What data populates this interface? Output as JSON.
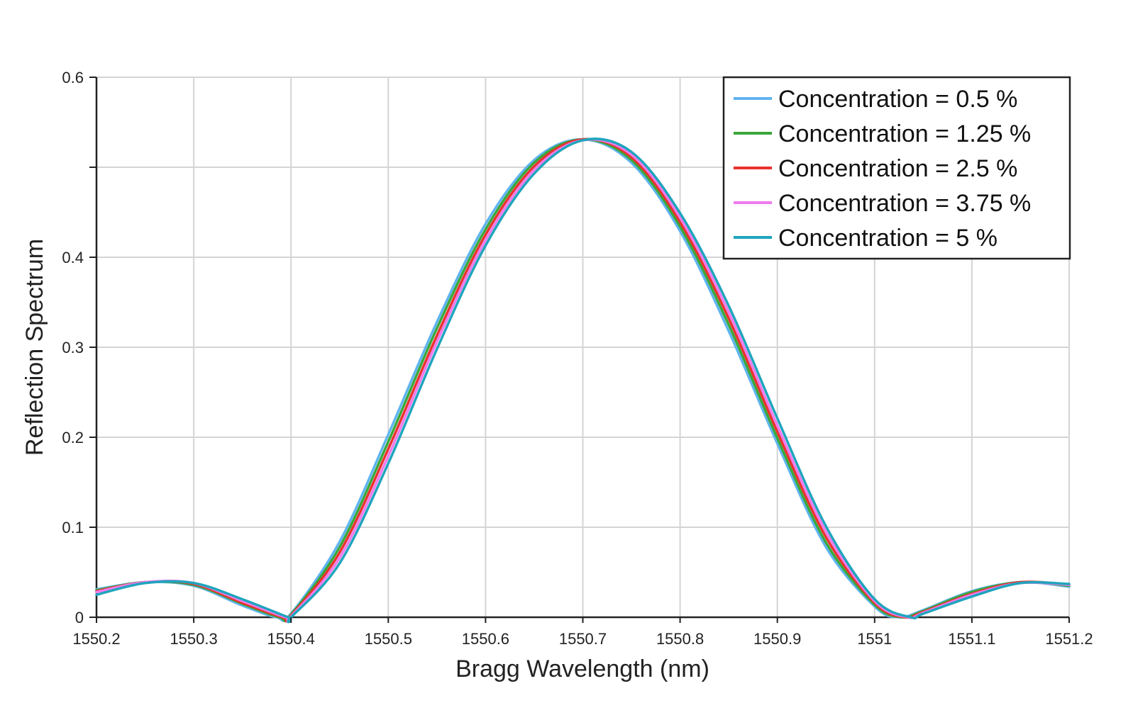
{
  "chart_data": {
    "type": "line",
    "title": "",
    "xlabel": "Bragg Wavelength (nm)",
    "ylabel": "Reflection Spectrum",
    "xlim": [
      1550.2,
      1551.2
    ],
    "ylim": [
      0,
      0.6
    ],
    "x_ticks": [
      1550.2,
      1550.3,
      1550.4,
      1550.5,
      1550.6,
      1550.7,
      1550.8,
      1550.9,
      1551,
      1551.1,
      1551.2
    ],
    "x_tick_labels": [
      "1550.2",
      "1550.3",
      "1550.4",
      "1550.5",
      "1550.6",
      "1550.7",
      "1550.8",
      "1550.9",
      "1551",
      "1551.1",
      "1551.2"
    ],
    "y_ticks": [
      0,
      0.1,
      0.2,
      0.3,
      0.4,
      0.5,
      0.6
    ],
    "y_tick_labels": [
      "0",
      "0.1",
      "0.2",
      "0.3",
      "0.4",
      "",
      "0.6"
    ],
    "grid": true,
    "legend_position": "top-right",
    "series": [
      {
        "name": "Concentration = 0.5 %",
        "color": "#5fb4f0",
        "x": [
          1550.2,
          1550.25,
          1550.3,
          1550.35,
          1550.385,
          1550.4,
          1550.45,
          1550.5,
          1550.55,
          1550.6,
          1550.65,
          1550.7,
          1550.75,
          1550.8,
          1550.85,
          1550.9,
          1550.95,
          1551.0,
          1551.025,
          1551.05,
          1551.1,
          1551.15,
          1551.2
        ],
        "y": [
          0.031,
          0.039,
          0.035,
          0.013,
          0.0,
          0.004,
          0.084,
          0.203,
          0.328,
          0.437,
          0.508,
          0.531,
          0.505,
          0.429,
          0.318,
          0.193,
          0.078,
          0.012,
          0.0,
          0.008,
          0.029,
          0.039,
          0.034
        ]
      },
      {
        "name": "Concentration = 1.25 %",
        "color": "#3aa83a",
        "x": [
          1550.2,
          1550.25,
          1550.3,
          1550.35,
          1550.388,
          1550.4,
          1550.45,
          1550.5,
          1550.55,
          1550.6,
          1550.65,
          1550.7,
          1550.75,
          1550.8,
          1550.85,
          1550.9,
          1550.95,
          1551.0,
          1551.028,
          1551.05,
          1551.1,
          1551.15,
          1551.2
        ],
        "y": [
          0.03,
          0.039,
          0.036,
          0.015,
          0.0,
          0.003,
          0.078,
          0.195,
          0.321,
          0.431,
          0.505,
          0.531,
          0.508,
          0.434,
          0.325,
          0.199,
          0.083,
          0.014,
          0.0,
          0.007,
          0.028,
          0.039,
          0.035
        ]
      },
      {
        "name": "Concentration = 2.5 %",
        "color": "#e8322e",
        "x": [
          1550.2,
          1550.25,
          1550.3,
          1550.35,
          1550.391,
          1550.4,
          1550.45,
          1550.5,
          1550.55,
          1550.6,
          1550.65,
          1550.7,
          1550.75,
          1550.8,
          1550.85,
          1550.9,
          1550.95,
          1551.0,
          1551.031,
          1551.05,
          1551.1,
          1551.15,
          1551.2
        ],
        "y": [
          0.029,
          0.039,
          0.037,
          0.016,
          0.0,
          0.002,
          0.072,
          0.187,
          0.313,
          0.425,
          0.501,
          0.531,
          0.511,
          0.439,
          0.332,
          0.206,
          0.089,
          0.016,
          0.0,
          0.006,
          0.026,
          0.039,
          0.036
        ]
      },
      {
        "name": "Concentration = 3.75 %",
        "color": "#ee7bee",
        "x": [
          1550.2,
          1550.25,
          1550.3,
          1550.35,
          1550.394,
          1550.4,
          1550.45,
          1550.5,
          1550.55,
          1550.6,
          1550.65,
          1550.7,
          1550.75,
          1550.8,
          1550.85,
          1550.9,
          1550.95,
          1551.0,
          1551.034,
          1551.05,
          1551.1,
          1551.15,
          1551.2
        ],
        "y": [
          0.028,
          0.039,
          0.038,
          0.018,
          0.0,
          0.001,
          0.066,
          0.179,
          0.306,
          0.419,
          0.497,
          0.53,
          0.514,
          0.444,
          0.339,
          0.213,
          0.095,
          0.018,
          0.0,
          0.005,
          0.025,
          0.038,
          0.036
        ]
      },
      {
        "name": "Concentration = 5 %",
        "color": "#1fa5bd",
        "x": [
          1550.2,
          1550.25,
          1550.3,
          1550.35,
          1550.397,
          1550.4,
          1550.45,
          1550.5,
          1550.55,
          1550.6,
          1550.65,
          1550.7,
          1550.75,
          1550.8,
          1550.85,
          1550.9,
          1550.95,
          1551.0,
          1551.037,
          1551.05,
          1551.1,
          1551.15,
          1551.2
        ],
        "y": [
          0.025,
          0.038,
          0.038,
          0.02,
          0.0,
          0.0,
          0.06,
          0.171,
          0.298,
          0.413,
          0.493,
          0.53,
          0.517,
          0.449,
          0.346,
          0.221,
          0.101,
          0.02,
          0.0,
          0.004,
          0.023,
          0.038,
          0.037
        ]
      }
    ]
  }
}
